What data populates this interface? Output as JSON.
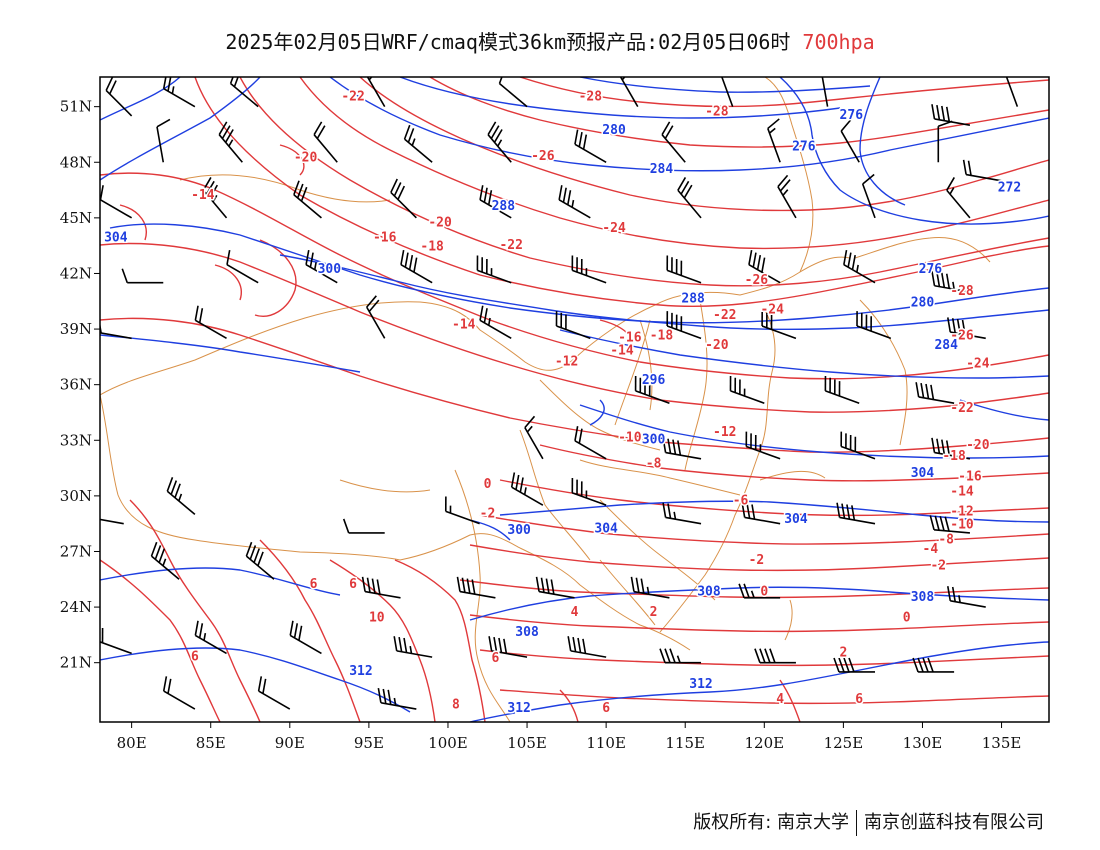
{
  "title": {
    "text": "2025年02月05日WRF/cmaq模式36km预报产品:02月05日06时",
    "level": "700hpa"
  },
  "colors": {
    "temperature": "#e0393b",
    "height": "#1f3fe0",
    "border": "#d9924a",
    "wind": "#000000"
  },
  "axes": {
    "lon_labels": [
      "80E",
      "85E",
      "90E",
      "95E",
      "100E",
      "105E",
      "110E",
      "115E",
      "120E",
      "125E",
      "130E",
      "135E"
    ],
    "lat_labels": [
      "51N",
      "48N",
      "45N",
      "42N",
      "39N",
      "36N",
      "33N",
      "30N",
      "27N",
      "24N",
      "21N"
    ]
  },
  "height_labels": [
    {
      "text": "304",
      "lon": 79,
      "lat": 44
    },
    {
      "text": "300",
      "lon": 92.5,
      "lat": 42.3
    },
    {
      "text": "288",
      "lon": 103.5,
      "lat": 45.7
    },
    {
      "text": "284",
      "lon": 113.5,
      "lat": 47.7
    },
    {
      "text": "280",
      "lon": 110.5,
      "lat": 49.8
    },
    {
      "text": "276",
      "lon": 122.5,
      "lat": 48.9
    },
    {
      "text": "276",
      "lon": 125.5,
      "lat": 50.6
    },
    {
      "text": "272",
      "lon": 135.5,
      "lat": 46.7
    },
    {
      "text": "276",
      "lon": 130.5,
      "lat": 42.3
    },
    {
      "text": "288",
      "lon": 115.5,
      "lat": 40.7
    },
    {
      "text": "280",
      "lon": 130,
      "lat": 40.5
    },
    {
      "text": "284",
      "lon": 131.5,
      "lat": 38.2
    },
    {
      "text": "296",
      "lon": 113,
      "lat": 36.3
    },
    {
      "text": "300",
      "lon": 113,
      "lat": 33.1
    },
    {
      "text": "304",
      "lon": 110,
      "lat": 28.3
    },
    {
      "text": "300",
      "lon": 104.5,
      "lat": 28.2
    },
    {
      "text": "304",
      "lon": 122,
      "lat": 28.8
    },
    {
      "text": "308",
      "lon": 116.5,
      "lat": 24.9
    },
    {
      "text": "308",
      "lon": 130,
      "lat": 24.6
    },
    {
      "text": "308",
      "lon": 105,
      "lat": 22.7
    },
    {
      "text": "312",
      "lon": 94.5,
      "lat": 20.6
    },
    {
      "text": "312",
      "lon": 104.5,
      "lat": 18.6
    },
    {
      "text": "312",
      "lon": 116,
      "lat": 19.9
    },
    {
      "text": "304",
      "lon": 130,
      "lat": 31.3
    }
  ],
  "temperature_labels": [
    {
      "text": "-22",
      "lon": 94,
      "lat": 51.6
    },
    {
      "text": "-28",
      "lon": 109,
      "lat": 51.6
    },
    {
      "text": "-28",
      "lon": 117,
      "lat": 50.8
    },
    {
      "text": "-20",
      "lon": 91,
      "lat": 48.3
    },
    {
      "text": "-26",
      "lon": 106,
      "lat": 48.4
    },
    {
      "text": "-14",
      "lon": 84.5,
      "lat": 46.3
    },
    {
      "text": "-20",
      "lon": 99.5,
      "lat": 44.8
    },
    {
      "text": "-24",
      "lon": 110.5,
      "lat": 44.5
    },
    {
      "text": "-16",
      "lon": 96,
      "lat": 44
    },
    {
      "text": "-18",
      "lon": 99,
      "lat": 43.5
    },
    {
      "text": "-22",
      "lon": 104,
      "lat": 43.6
    },
    {
      "text": "-14",
      "lon": 101,
      "lat": 39.3
    },
    {
      "text": "-26",
      "lon": 119.5,
      "lat": 41.7
    },
    {
      "text": "-24",
      "lon": 120.5,
      "lat": 40.1
    },
    {
      "text": "-22",
      "lon": 117.5,
      "lat": 39.8
    },
    {
      "text": "-28",
      "lon": 132.5,
      "lat": 41.1
    },
    {
      "text": "-26",
      "lon": 132.5,
      "lat": 38.7
    },
    {
      "text": "-16",
      "lon": 111.5,
      "lat": 38.6
    },
    {
      "text": "-18",
      "lon": 113.5,
      "lat": 38.7
    },
    {
      "text": "-14",
      "lon": 111,
      "lat": 37.9
    },
    {
      "text": "-20",
      "lon": 117,
      "lat": 38.2
    },
    {
      "text": "-12",
      "lon": 107.5,
      "lat": 37.3
    },
    {
      "text": "-24",
      "lon": 133.5,
      "lat": 37.2
    },
    {
      "text": "-22",
      "lon": 132.5,
      "lat": 34.8
    },
    {
      "text": "-10",
      "lon": 111.5,
      "lat": 33.2
    },
    {
      "text": "-12",
      "lon": 117.5,
      "lat": 33.5
    },
    {
      "text": "-18",
      "lon": 132,
      "lat": 32.2
    },
    {
      "text": "-20",
      "lon": 133.5,
      "lat": 32.8
    },
    {
      "text": "-8",
      "lon": 113,
      "lat": 31.8
    },
    {
      "text": "-16",
      "lon": 133,
      "lat": 31.1
    },
    {
      "text": "-14",
      "lon": 132.5,
      "lat": 30.3
    },
    {
      "text": "-6",
      "lon": 118.5,
      "lat": 29.8
    },
    {
      "text": "0",
      "lon": 102.5,
      "lat": 30.7
    },
    {
      "text": "-12",
      "lon": 132.5,
      "lat": 29.2
    },
    {
      "text": "-2",
      "lon": 102.5,
      "lat": 29.1
    },
    {
      "text": "-10",
      "lon": 132.5,
      "lat": 28.5
    },
    {
      "text": "-8",
      "lon": 131.5,
      "lat": 27.7
    },
    {
      "text": "-4",
      "lon": 130.5,
      "lat": 27.2
    },
    {
      "text": "-2",
      "lon": 119.5,
      "lat": 26.6
    },
    {
      "text": "-2",
      "lon": 131,
      "lat": 26.3
    },
    {
      "text": "6",
      "lon": 94,
      "lat": 25.3
    },
    {
      "text": "6",
      "lon": 91.5,
      "lat": 25.3
    },
    {
      "text": "0",
      "lon": 120,
      "lat": 24.9
    },
    {
      "text": "4",
      "lon": 108,
      "lat": 23.8
    },
    {
      "text": "2",
      "lon": 113,
      "lat": 23.8
    },
    {
      "text": "0",
      "lon": 129,
      "lat": 23.5
    },
    {
      "text": "10",
      "lon": 95.5,
      "lat": 23.5
    },
    {
      "text": "2",
      "lon": 125,
      "lat": 21.6
    },
    {
      "text": "6",
      "lon": 84,
      "lat": 21.4
    },
    {
      "text": "6",
      "lon": 103,
      "lat": 21.3
    },
    {
      "text": "8",
      "lon": 100.5,
      "lat": 18.8
    },
    {
      "text": "6",
      "lon": 110,
      "lat": 18.6
    },
    {
      "text": "4",
      "lon": 121,
      "lat": 19.1
    },
    {
      "text": "6",
      "lon": 126,
      "lat": 19.1
    }
  ],
  "wind_barbs": [
    {
      "lon": 80,
      "lat": 50.5,
      "dir": 315,
      "spd": 20
    },
    {
      "lon": 84,
      "lat": 51,
      "dir": 300,
      "spd": 25
    },
    {
      "lon": 88,
      "lat": 51,
      "dir": 310,
      "spd": 20
    },
    {
      "lon": 96,
      "lat": 51,
      "dir": 330,
      "spd": 20
    },
    {
      "lon": 105,
      "lat": 51,
      "dir": 310,
      "spd": 10
    },
    {
      "lon": 112,
      "lat": 51,
      "dir": 330,
      "spd": 15
    },
    {
      "lon": 118,
      "lat": 51,
      "dir": 340,
      "spd": 10
    },
    {
      "lon": 124,
      "lat": 51,
      "dir": 350,
      "spd": 10
    },
    {
      "lon": 133,
      "lat": 50,
      "dir": 280,
      "spd": 40
    },
    {
      "lon": 136,
      "lat": 51,
      "dir": 340,
      "spd": 10
    },
    {
      "lon": 82,
      "lat": 48,
      "dir": 350,
      "spd": 10
    },
    {
      "lon": 87,
      "lat": 48,
      "dir": 320,
      "spd": 35
    },
    {
      "lon": 93,
      "lat": 48,
      "dir": 320,
      "spd": 20
    },
    {
      "lon": 99,
      "lat": 48,
      "dir": 310,
      "spd": 25
    },
    {
      "lon": 104,
      "lat": 48,
      "dir": 320,
      "spd": 35
    },
    {
      "lon": 110,
      "lat": 48,
      "dir": 300,
      "spd": 30
    },
    {
      "lon": 115,
      "lat": 48,
      "dir": 320,
      "spd": 20
    },
    {
      "lon": 121,
      "lat": 48,
      "dir": 340,
      "spd": 15
    },
    {
      "lon": 126,
      "lat": 48,
      "dir": 330,
      "spd": 10
    },
    {
      "lon": 131,
      "lat": 48,
      "dir": 0,
      "spd": 10
    },
    {
      "lon": 135,
      "lat": 47,
      "dir": 280,
      "spd": 20
    },
    {
      "lon": 80,
      "lat": 45,
      "dir": 300,
      "spd": 10
    },
    {
      "lon": 86,
      "lat": 45,
      "dir": 320,
      "spd": 35
    },
    {
      "lon": 92,
      "lat": 45,
      "dir": 310,
      "spd": 30
    },
    {
      "lon": 98,
      "lat": 45,
      "dir": 315,
      "spd": 30
    },
    {
      "lon": 104,
      "lat": 45,
      "dir": 300,
      "spd": 30
    },
    {
      "lon": 109,
      "lat": 45,
      "dir": 300,
      "spd": 35
    },
    {
      "lon": 116,
      "lat": 45,
      "dir": 320,
      "spd": 30
    },
    {
      "lon": 122,
      "lat": 45,
      "dir": 330,
      "spd": 25
    },
    {
      "lon": 127,
      "lat": 45,
      "dir": 340,
      "spd": 10
    },
    {
      "lon": 133,
      "lat": 45,
      "dir": 320,
      "spd": 15
    },
    {
      "lon": 82,
      "lat": 41.5,
      "dir": 270,
      "spd": 10
    },
    {
      "lon": 88,
      "lat": 41.5,
      "dir": 300,
      "spd": 10
    },
    {
      "lon": 93,
      "lat": 41.5,
      "dir": 300,
      "spd": 25
    },
    {
      "lon": 99,
      "lat": 41.5,
      "dir": 300,
      "spd": 40
    },
    {
      "lon": 104,
      "lat": 41.5,
      "dir": 290,
      "spd": 35
    },
    {
      "lon": 110,
      "lat": 41.5,
      "dir": 290,
      "spd": 35
    },
    {
      "lon": 116,
      "lat": 41.5,
      "dir": 290,
      "spd": 40
    },
    {
      "lon": 121,
      "lat": 41.5,
      "dir": 300,
      "spd": 40
    },
    {
      "lon": 127,
      "lat": 41.5,
      "dir": 300,
      "spd": 35
    },
    {
      "lon": 133,
      "lat": 41,
      "dir": 280,
      "spd": 45
    },
    {
      "lon": 80,
      "lat": 38.5,
      "dir": 280,
      "spd": 20
    },
    {
      "lon": 86,
      "lat": 38.5,
      "dir": 300,
      "spd": 20
    },
    {
      "lon": 96,
      "lat": 38.5,
      "dir": 330,
      "spd": 20
    },
    {
      "lon": 104,
      "lat": 38.5,
      "dir": 300,
      "spd": 25
    },
    {
      "lon": 109,
      "lat": 38.5,
      "dir": 290,
      "spd": 30
    },
    {
      "lon": 116,
      "lat": 38.5,
      "dir": 290,
      "spd": 40
    },
    {
      "lon": 122,
      "lat": 38.5,
      "dir": 290,
      "spd": 30
    },
    {
      "lon": 128,
      "lat": 38.5,
      "dir": 290,
      "spd": 40
    },
    {
      "lon": 134,
      "lat": 38.5,
      "dir": 280,
      "spd": 40
    },
    {
      "lon": 114,
      "lat": 35,
      "dir": 290,
      "spd": 40
    },
    {
      "lon": 120,
      "lat": 35,
      "dir": 290,
      "spd": 35
    },
    {
      "lon": 126,
      "lat": 35,
      "dir": 290,
      "spd": 40
    },
    {
      "lon": 132,
      "lat": 35,
      "dir": 280,
      "spd": 40
    },
    {
      "lon": 106,
      "lat": 32,
      "dir": 330,
      "spd": 15
    },
    {
      "lon": 110,
      "lat": 32,
      "dir": 300,
      "spd": 20
    },
    {
      "lon": 116,
      "lat": 32,
      "dir": 280,
      "spd": 40
    },
    {
      "lon": 121,
      "lat": 32,
      "dir": 290,
      "spd": 35
    },
    {
      "lon": 127,
      "lat": 32,
      "dir": 290,
      "spd": 40
    },
    {
      "lon": 133,
      "lat": 32,
      "dir": 280,
      "spd": 40
    },
    {
      "lon": 79.5,
      "lat": 28.5,
      "dir": 280,
      "spd": 20
    },
    {
      "lon": 84,
      "lat": 29,
      "dir": 310,
      "spd": 35
    },
    {
      "lon": 96,
      "lat": 28,
      "dir": 270,
      "spd": 10
    },
    {
      "lon": 102,
      "lat": 28.5,
      "dir": 290,
      "spd": 15
    },
    {
      "lon": 106,
      "lat": 29.5,
      "dir": 300,
      "spd": 35
    },
    {
      "lon": 110,
      "lat": 29.5,
      "dir": 290,
      "spd": 35
    },
    {
      "lon": 116,
      "lat": 28.5,
      "dir": 280,
      "spd": 25
    },
    {
      "lon": 121,
      "lat": 28.5,
      "dir": 280,
      "spd": 30
    },
    {
      "lon": 127,
      "lat": 28.5,
      "dir": 280,
      "spd": 40
    },
    {
      "lon": 133,
      "lat": 28,
      "dir": 275,
      "spd": 40
    },
    {
      "lon": 83,
      "lat": 25.5,
      "dir": 310,
      "spd": 35
    },
    {
      "lon": 89,
      "lat": 25.5,
      "dir": 310,
      "spd": 40
    },
    {
      "lon": 97,
      "lat": 24.5,
      "dir": 280,
      "spd": 40
    },
    {
      "lon": 103,
      "lat": 24.5,
      "dir": 280,
      "spd": 40
    },
    {
      "lon": 108,
      "lat": 24.5,
      "dir": 280,
      "spd": 40
    },
    {
      "lon": 114,
      "lat": 24.5,
      "dir": 280,
      "spd": 35
    },
    {
      "lon": 121,
      "lat": 24.5,
      "dir": 270,
      "spd": 25
    },
    {
      "lon": 134,
      "lat": 24,
      "dir": 280,
      "spd": 25
    },
    {
      "lon": 80,
      "lat": 21.5,
      "dir": 290,
      "spd": 20
    },
    {
      "lon": 86,
      "lat": 21.5,
      "dir": 300,
      "spd": 25
    },
    {
      "lon": 92,
      "lat": 21.5,
      "dir": 300,
      "spd": 30
    },
    {
      "lon": 99,
      "lat": 21.3,
      "dir": 280,
      "spd": 35
    },
    {
      "lon": 105,
      "lat": 21.3,
      "dir": 280,
      "spd": 40
    },
    {
      "lon": 110,
      "lat": 21.3,
      "dir": 280,
      "spd": 40
    },
    {
      "lon": 116,
      "lat": 21,
      "dir": 270,
      "spd": 35
    },
    {
      "lon": 122,
      "lat": 21,
      "dir": 270,
      "spd": 40
    },
    {
      "lon": 127,
      "lat": 20.5,
      "dir": 270,
      "spd": 40
    },
    {
      "lon": 132,
      "lat": 20.5,
      "dir": 270,
      "spd": 40
    },
    {
      "lon": 84,
      "lat": 18.5,
      "dir": 300,
      "spd": 20
    },
    {
      "lon": 90,
      "lat": 18.5,
      "dir": 300,
      "spd": 20
    },
    {
      "lon": 98,
      "lat": 18.5,
      "dir": 280,
      "spd": 35
    }
  ],
  "footer": {
    "copyright": "版权所有: 南京大学",
    "company": "南京创蓝科技有限公司"
  }
}
